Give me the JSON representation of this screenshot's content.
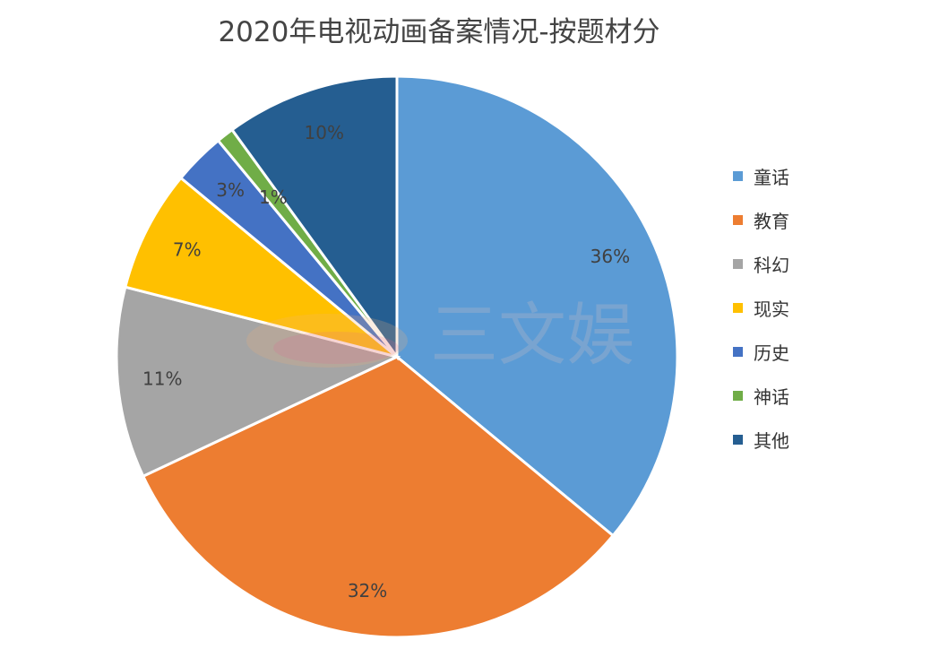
{
  "chart_data": {
    "type": "pie",
    "title": "2020年电视动画备案情况-按题材分",
    "categories": [
      "童话",
      "教育",
      "科幻",
      "现实",
      "历史",
      "神话",
      "其他"
    ],
    "values": [
      36,
      32,
      11,
      7,
      3,
      1,
      10
    ],
    "labels": [
      "36%",
      "32%",
      "11%",
      "7%",
      "3%",
      "1%",
      "10%"
    ],
    "colors": [
      "#5B9BD5",
      "#ED7D31",
      "#A5A5A5",
      "#FFC000",
      "#4472C4",
      "#70AD47",
      "#255E91"
    ],
    "legend": "right"
  },
  "watermark": {
    "text": "三文娱"
  }
}
